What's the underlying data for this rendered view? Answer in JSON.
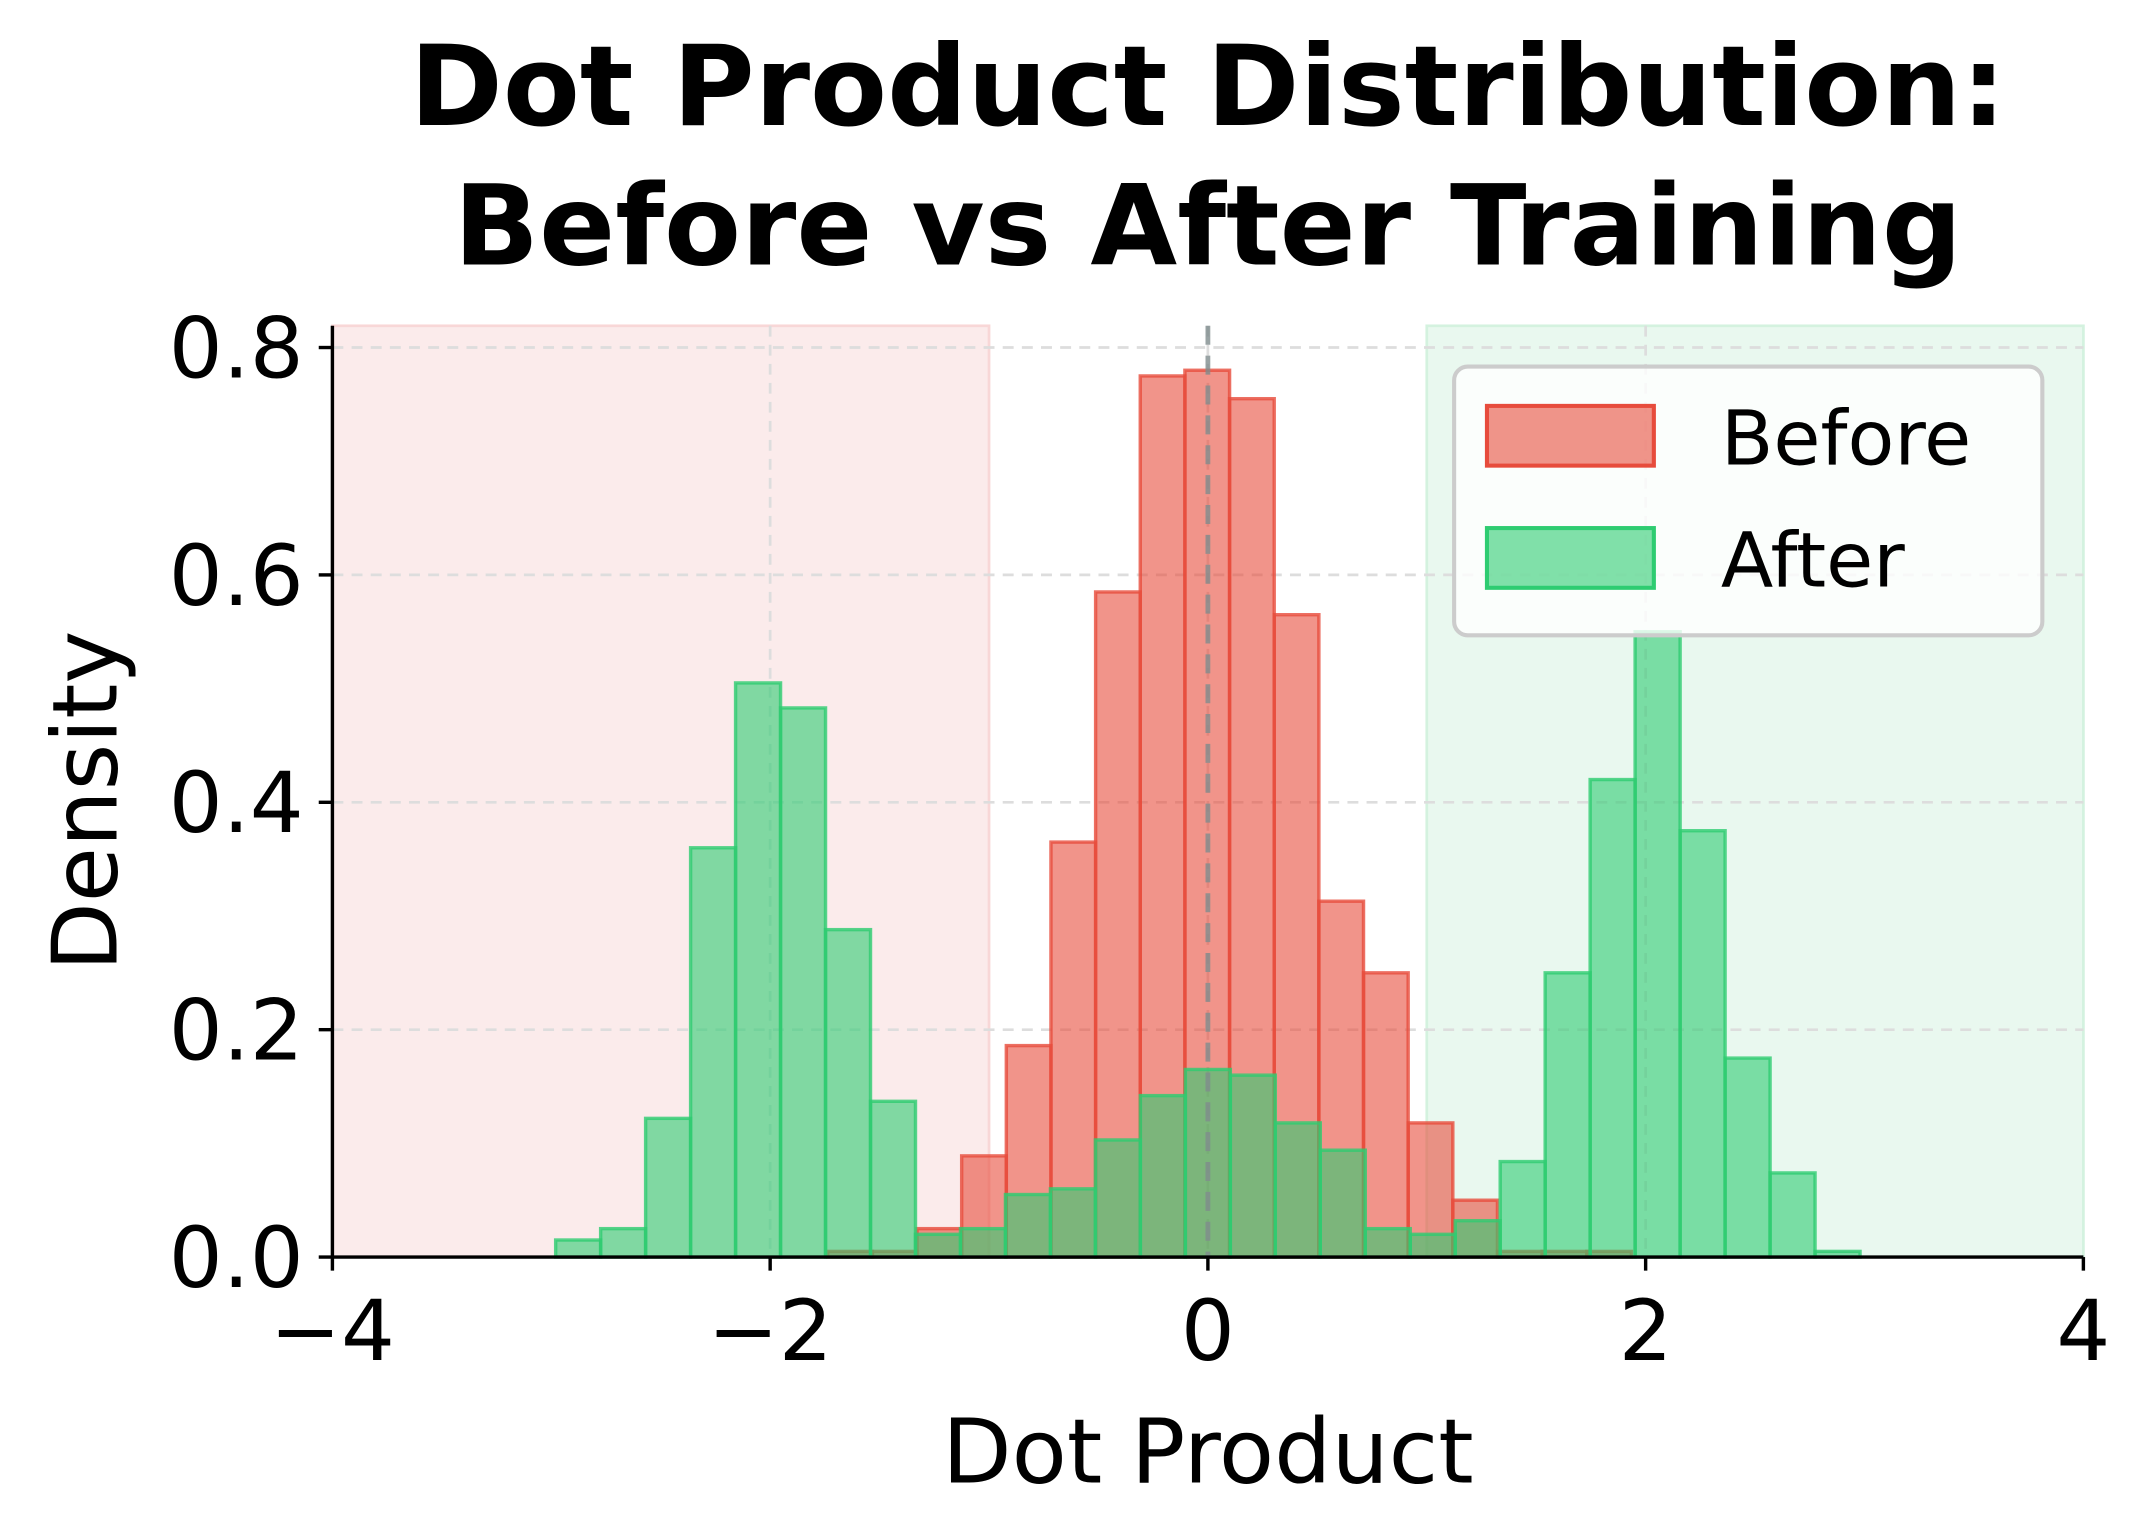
{
  "chart_data": {
    "type": "bar",
    "title_line1": "Dot Product Distribution:",
    "title_line2": "Before vs After Training",
    "xlabel": "Dot Product",
    "ylabel": "Density",
    "xlim": [
      -4,
      4
    ],
    "ylim": [
      0,
      0.82
    ],
    "xticks": [
      -4,
      -2,
      0,
      2,
      4
    ],
    "xtick_labels": [
      "−4",
      "−2",
      "0",
      "2",
      "4"
    ],
    "yticks": [
      0.0,
      0.2,
      0.4,
      0.6,
      0.8
    ],
    "ytick_labels": [
      "0.0",
      "0.2",
      "0.4",
      "0.6",
      "0.8"
    ],
    "grid": true,
    "legend_position": "top-right",
    "shaded_regions": [
      {
        "x0": -4,
        "x1": -1,
        "color": "#f8d7d7"
      },
      {
        "x0": 1,
        "x1": 4,
        "color": "#d4f2df"
      }
    ],
    "reference_line_x": 0,
    "series": [
      {
        "name": "Before",
        "color": "#e74c3c",
        "bin_start": -1.737,
        "bin_width": 0.204,
        "values": [
          0.005,
          0.005,
          0.025,
          0.089,
          0.186,
          0.365,
          0.585,
          0.775,
          0.78,
          0.755,
          0.565,
          0.313,
          0.25,
          0.118,
          0.05,
          0.005,
          0.005,
          0.005
        ]
      },
      {
        "name": "After",
        "color": "#2ecc71",
        "bin_start": -2.98,
        "bin_width": 0.2055,
        "values": [
          0.015,
          0.025,
          0.122,
          0.36,
          0.505,
          0.483,
          0.288,
          0.137,
          0.02,
          0.025,
          0.055,
          0.06,
          0.103,
          0.142,
          0.165,
          0.16,
          0.118,
          0.094,
          0.025,
          0.02,
          0.032,
          0.084,
          0.25,
          0.42,
          0.55,
          0.375,
          0.175,
          0.074,
          0.005
        ]
      }
    ]
  }
}
